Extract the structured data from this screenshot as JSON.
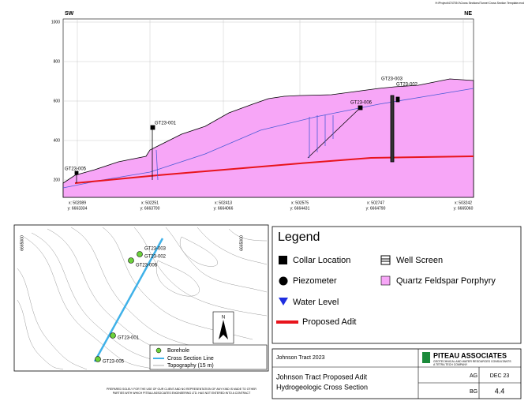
{
  "header": "H:\\Project\\474705 0\\Cross Sections\\Tunnel Cross Section Template.mxd",
  "section": {
    "sw": "SW",
    "ne": "NE",
    "yticks": [
      "1000",
      "800",
      "600",
      "400",
      "200"
    ],
    "xlabels": [
      {
        "x": "x: 502089",
        "y": "y: 6663334"
      },
      {
        "x": "x: 502251",
        "y": "y: 6663700"
      },
      {
        "x": "x: 502413",
        "y": "y: 6664066"
      },
      {
        "x": "x: 502575",
        "y": "y: 6664431"
      },
      {
        "x": "x: 502747",
        "y": "y: 6664790"
      },
      {
        "x": "x: 503242",
        "y": "y: 6665060"
      }
    ],
    "boreholes": [
      "GT23-005",
      "GT23-001",
      "GT23-006",
      "GT23-003",
      "GT23-002"
    ]
  },
  "map": {
    "coord_left": "6665000",
    "coord_right": "6665000",
    "boreholes": [
      "GT23-003",
      "GT23-002",
      "GT23-006",
      "GT23-001",
      "GT23-005"
    ],
    "north": "N",
    "legend": [
      "Borehole",
      "Cross Section Line",
      "Topography (15 m)"
    ]
  },
  "legend": {
    "title": "Legend",
    "items": [
      "Collar Location",
      "Well Screen",
      "Piezometer",
      "Quartz Feldspar Porphyry",
      "Water Level",
      "Proposed Adit"
    ]
  },
  "titleblock": {
    "project": "Johnson Tract 2023",
    "company": "PITEAU ASSOCIATES",
    "tagline": "GEOTECHNICAL AND WATER RESOURCES CONSULTANTS",
    "parent": "A TETRA TECH COMPANY",
    "title1": "Johnson Tract Proposed Adit",
    "title2": "Hydrogeologic Cross Section",
    "drawn": "AG",
    "date": "DEC 23",
    "checked": "BG",
    "figure": "4.4"
  },
  "disclaimer1": "PREPARED SOLELY FOR THE USE OF OUR CLIENT AND NO REPRESENTATION OF ANY KIND IS MADE TO OTHER",
  "disclaimer2": "PARTIES WITH WHICH PITEAU ASSOCIATES ENGINEERING LTD. HAS NOT ENTERED INTO A CONTRACT"
}
